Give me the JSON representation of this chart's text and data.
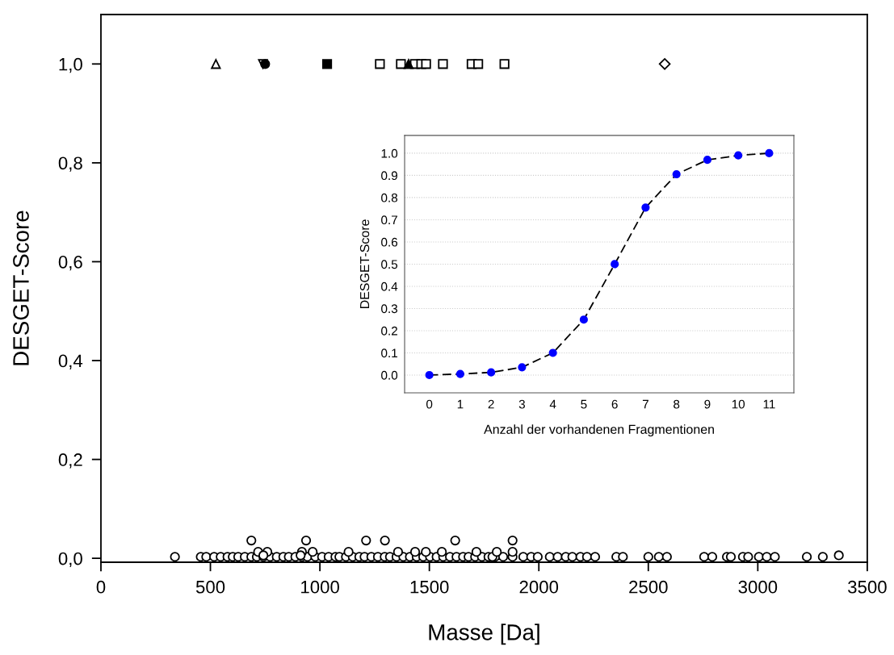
{
  "chart_data": [
    {
      "type": "scatter",
      "xlabel": "Masse [Da]",
      "ylabel": "DESGET-Score",
      "xlim": [
        0,
        3500
      ],
      "xticks": [
        0,
        500,
        1000,
        1500,
        2000,
        2500,
        3000,
        3500
      ],
      "ylim": [
        -0.008,
        1.1
      ],
      "yticks": [
        {
          "value": 0,
          "label": "0,0"
        },
        {
          "value": 0.2,
          "label": "0,2"
        },
        {
          "value": 0.4,
          "label": "0,4"
        },
        {
          "value": 0.6,
          "label": "0,6"
        },
        {
          "value": 0.8,
          "label": "0,8"
        },
        {
          "value": 1.0,
          "label": "1,0"
        }
      ],
      "grid": false,
      "legend": false,
      "series": [
        {
          "marker": "triangle",
          "color": "#ffffff",
          "x": [
            525
          ],
          "values": [
            1.0
          ]
        },
        {
          "marker": "triangle_down",
          "color": "#ffffff",
          "x": [
            740
          ],
          "values": [
            1.0
          ]
        },
        {
          "marker": "circle",
          "color": "#000000",
          "x": [
            750
          ],
          "values": [
            1.0
          ]
        },
        {
          "marker": "square",
          "color": "#000000",
          "x": [
            1033
          ],
          "values": [
            1.0
          ]
        },
        {
          "marker": "square",
          "color": "#ffffff",
          "x": [
            1274,
            1370,
            1434,
            1463,
            1485,
            1562,
            1693,
            1723,
            1843
          ],
          "values": [
            1.0,
            1.0,
            1.0,
            1.0,
            1.0,
            1.0,
            1.0,
            1.0,
            1.0
          ]
        },
        {
          "marker": "triangle",
          "color": "#000000",
          "x": [
            1405
          ],
          "values": [
            1.0
          ]
        },
        {
          "marker": "diamond",
          "color": "#ffffff",
          "x": [
            2575
          ],
          "values": [
            1.0
          ]
        },
        {
          "marker": "circle",
          "color": "#ffffff",
          "x": [
            338,
            456,
            481,
            517,
            547,
            578,
            602,
            627,
            657,
            687,
            712,
            742,
            773,
            803,
            833,
            858,
            888,
            918,
            943,
            979,
            1010,
            1040,
            1071,
            1089,
            1119,
            1150,
            1180,
            1204,
            1235,
            1265,
            1296,
            1320,
            1350,
            1381,
            1411,
            1442,
            1472,
            1503,
            1533,
            1563,
            1594,
            1624,
            1654,
            1679,
            1709,
            1740,
            1770,
            1800,
            1788,
            1837,
            1880,
            1929,
            1965,
            1995,
            2050,
            2086,
            2123,
            2153,
            2190,
            2220,
            2257,
            2354,
            2384,
            2500,
            2548,
            2585,
            2755,
            2792,
            2859,
            2877,
            2932,
            2956,
            3005,
            3041,
            3078,
            3224,
            3297,
            3370,
            718,
            760,
            918,
            967,
            1131,
            1357,
            1435,
            1484,
            1557,
            1715,
            1808,
            1880,
            742,
            912,
            687,
            937,
            1211,
            1297,
            1618,
            1880
          ],
          "values": [
            0.003,
            0.003,
            0.003,
            0.003,
            0.003,
            0.003,
            0.003,
            0.003,
            0.003,
            0.003,
            0.003,
            0.003,
            0.003,
            0.003,
            0.003,
            0.003,
            0.003,
            0.003,
            0.003,
            0.003,
            0.003,
            0.003,
            0.003,
            0.003,
            0.003,
            0.003,
            0.003,
            0.003,
            0.003,
            0.003,
            0.003,
            0.003,
            0.003,
            0.003,
            0.003,
            0.003,
            0.003,
            0.003,
            0.003,
            0.003,
            0.003,
            0.003,
            0.003,
            0.003,
            0.003,
            0.003,
            0.003,
            0.003,
            0.003,
            0.003,
            0.003,
            0.003,
            0.003,
            0.003,
            0.003,
            0.003,
            0.003,
            0.003,
            0.003,
            0.003,
            0.003,
            0.003,
            0.003,
            0.003,
            0.003,
            0.003,
            0.003,
            0.003,
            0.003,
            0.003,
            0.003,
            0.003,
            0.003,
            0.003,
            0.003,
            0.003,
            0.003,
            0.006,
            0.013,
            0.013,
            0.013,
            0.013,
            0.013,
            0.013,
            0.013,
            0.013,
            0.013,
            0.013,
            0.013,
            0.013,
            0.006,
            0.006,
            0.036,
            0.036,
            0.036,
            0.036,
            0.036,
            0.036
          ]
        }
      ]
    },
    {
      "type": "scatter",
      "xlabel": "Anzahl der vorhandenen Fragmentionen",
      "ylabel": "DESGET-Score",
      "xlim": [
        -0.8,
        11.8
      ],
      "xticks": [
        0,
        1,
        2,
        3,
        4,
        5,
        6,
        7,
        8,
        9,
        10,
        11
      ],
      "ylim": [
        -0.08,
        1.08
      ],
      "yticks": [
        {
          "value": 0,
          "label": "0.0"
        },
        {
          "value": 0.1,
          "label": "0.1"
        },
        {
          "value": 0.2,
          "label": "0.2"
        },
        {
          "value": 0.3,
          "label": "0.3"
        },
        {
          "value": 0.4,
          "label": "0.4"
        },
        {
          "value": 0.5,
          "label": "0.5"
        },
        {
          "value": 0.6,
          "label": "0.6"
        },
        {
          "value": 0.7,
          "label": "0.7"
        },
        {
          "value": 0.8,
          "label": "0.8"
        },
        {
          "value": 0.9,
          "label": "0.9"
        },
        {
          "value": 1.0,
          "label": "1.0"
        }
      ],
      "grid": "y",
      "legend": false,
      "series": [
        {
          "type": "line",
          "line_style": "dashed",
          "marker": "none",
          "color": "#000000",
          "x": [
            0,
            1,
            2,
            3,
            4,
            5,
            6,
            7,
            8,
            9,
            10,
            11
          ],
          "values": [
            0,
            0.005,
            0.012,
            0.035,
            0.1,
            0.25,
            0.5,
            0.755,
            0.905,
            0.97,
            0.99,
            1.0
          ]
        },
        {
          "marker": "circle",
          "color": "#0000ff",
          "x": [
            0,
            1,
            2,
            3,
            4,
            5,
            6,
            7,
            8,
            9,
            10,
            11
          ],
          "values": [
            0,
            0.005,
            0.012,
            0.035,
            0.1,
            0.25,
            0.5,
            0.755,
            0.905,
            0.97,
            0.99,
            1.0
          ]
        }
      ]
    }
  ]
}
